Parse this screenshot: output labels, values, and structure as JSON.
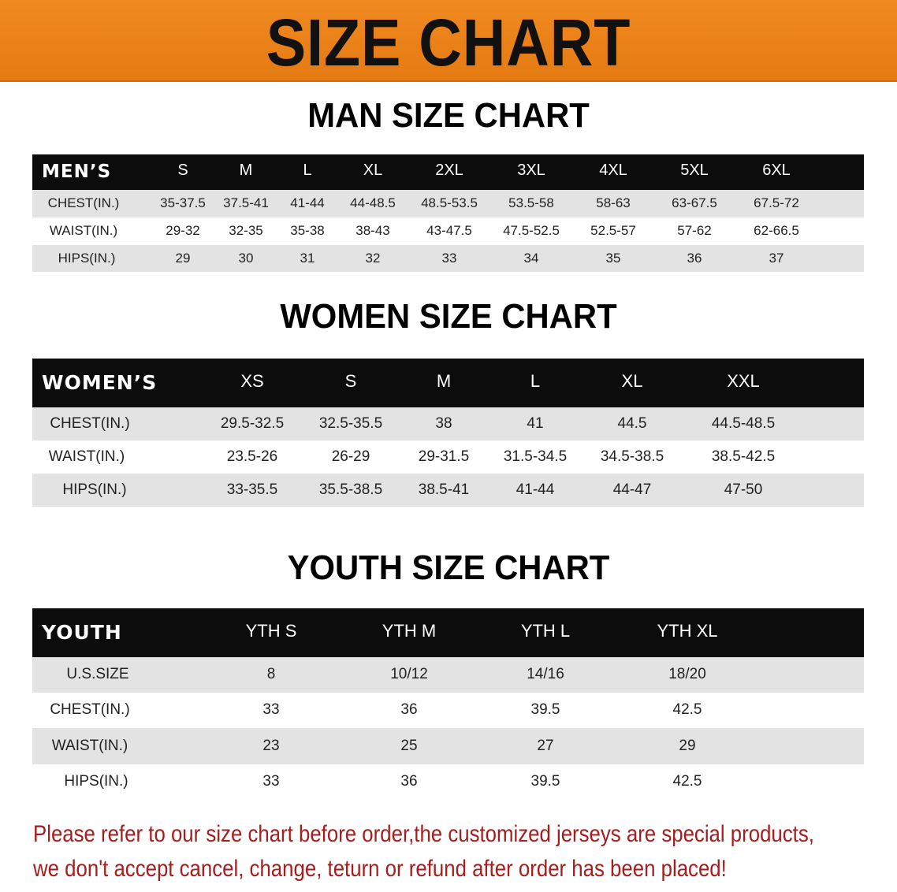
{
  "banner_title": "SIZE CHART",
  "men": {
    "title": "MAN SIZE CHART",
    "header": [
      "MEN’S",
      "S",
      "M",
      "L",
      "XL",
      "2XL",
      "3XL",
      "4XL",
      "5XL",
      "6XL"
    ],
    "rows": [
      [
        "CHEST(IN.)",
        "35-37.5",
        "37.5-41",
        "41-44",
        "44-48.5",
        "48.5-53.5",
        "53.5-58",
        "58-63",
        "63-67.5",
        "67.5-72"
      ],
      [
        "WAIST(IN.)",
        "29-32",
        "32-35",
        "35-38",
        "38-43",
        "43-47.5",
        "47.5-52.5",
        "52.5-57",
        "57-62",
        "62-66.5"
      ],
      [
        "HIPS(IN.)",
        "29",
        "30",
        "31",
        "32",
        "33",
        "34",
        "35",
        "36",
        "37"
      ]
    ]
  },
  "women": {
    "title": "WOMEN SIZE CHART",
    "header": [
      "WOMEN’S",
      "XS",
      "S",
      "M",
      "L",
      "XL",
      "XXL"
    ],
    "rows": [
      [
        "CHEST(IN.)",
        "29.5-32.5",
        "32.5-35.5",
        "38",
        "41",
        "44.5",
        "44.5-48.5"
      ],
      [
        "WAIST(IN.)",
        "23.5-26",
        "26-29",
        "29-31.5",
        "31.5-34.5",
        "34.5-38.5",
        "38.5-42.5"
      ],
      [
        "HIPS(IN.)",
        "33-35.5",
        "35.5-38.5",
        "38.5-41",
        "41-44",
        "44-47",
        "47-50"
      ]
    ]
  },
  "youth": {
    "title": "YOUTH SIZE CHART",
    "header": [
      "YOUTH",
      "YTH S",
      "YTH M",
      "YTH L",
      "YTH XL"
    ],
    "rows": [
      [
        "U.S.SIZE",
        "8",
        "10/12",
        "14/16",
        "18/20"
      ],
      [
        "CHEST(IN.)",
        "33",
        "36",
        "39.5",
        "42.5"
      ],
      [
        "WAIST(IN.)",
        "23",
        "25",
        "27",
        "29"
      ],
      [
        "HIPS(IN.)",
        "33",
        "36",
        "39.5",
        "42.5"
      ]
    ]
  },
  "notice": [
    "Please refer to our size chart before order,the customized jerseys are special products,",
    "we don't accept cancel, change, teturn or refund after order has been placed!"
  ]
}
